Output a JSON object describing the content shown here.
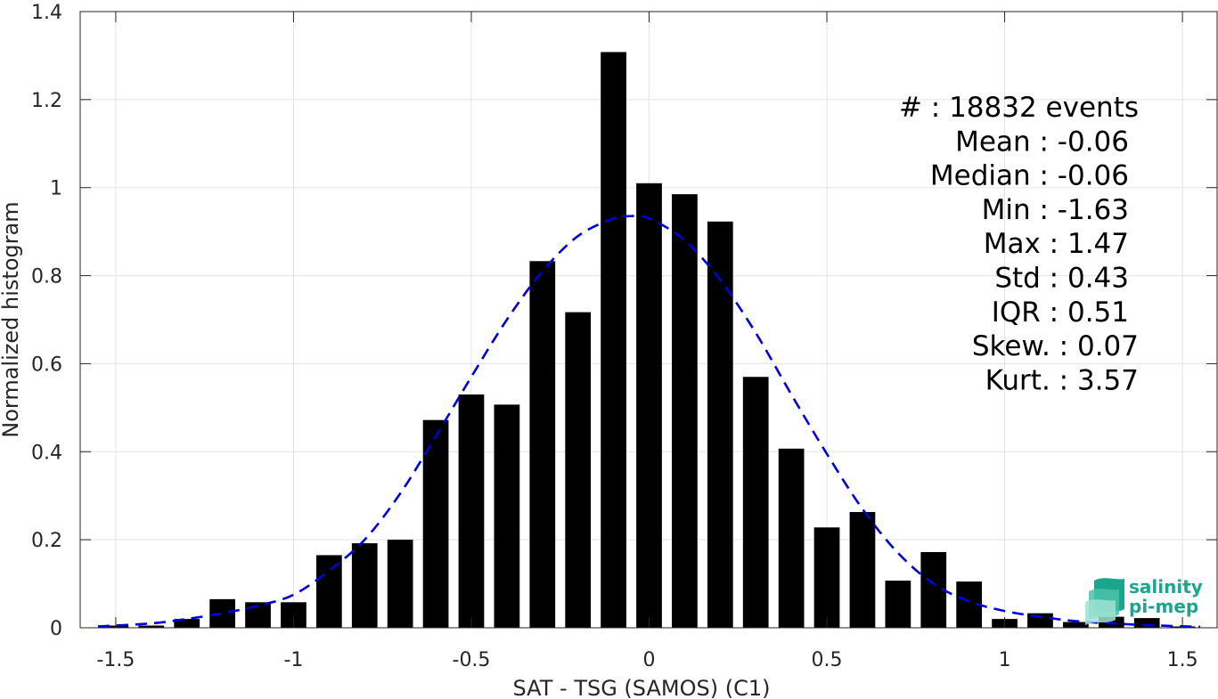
{
  "chart_data": {
    "type": "bar",
    "title": "",
    "xlabel": "SAT - TSG (SAMOS) (C1)",
    "ylabel": "Normalized histogram",
    "xlim": [
      -1.6,
      1.6
    ],
    "ylim": [
      0,
      1.4
    ],
    "xticks": [
      -1.5,
      -1,
      -0.5,
      0,
      0.5,
      1,
      1.5
    ],
    "xtick_labels": [
      "-1.5",
      "-1",
      "-0.5",
      "0",
      "0.5",
      "1",
      "1.5"
    ],
    "yticks": [
      0,
      0.2,
      0.4,
      0.6,
      0.8,
      1,
      1.2,
      1.4
    ],
    "ytick_labels": [
      "0",
      "0.2",
      "0.4",
      "0.6",
      "0.8",
      "1",
      "1.2",
      "1.4"
    ],
    "grid": true,
    "bin_width": 0.1,
    "bars": [
      {
        "x": -1.5,
        "y": 0.005
      },
      {
        "x": -1.4,
        "y": 0.005
      },
      {
        "x": -1.3,
        "y": 0.02
      },
      {
        "x": -1.2,
        "y": 0.065
      },
      {
        "x": -1.1,
        "y": 0.058
      },
      {
        "x": -1.0,
        "y": 0.058
      },
      {
        "x": -0.9,
        "y": 0.165
      },
      {
        "x": -0.8,
        "y": 0.192
      },
      {
        "x": -0.7,
        "y": 0.2
      },
      {
        "x": -0.6,
        "y": 0.472
      },
      {
        "x": -0.5,
        "y": 0.53
      },
      {
        "x": -0.4,
        "y": 0.507
      },
      {
        "x": -0.3,
        "y": 0.833
      },
      {
        "x": -0.2,
        "y": 0.717
      },
      {
        "x": -0.1,
        "y": 1.308
      },
      {
        "x": 0.0,
        "y": 1.01
      },
      {
        "x": 0.1,
        "y": 0.985
      },
      {
        "x": 0.2,
        "y": 0.923
      },
      {
        "x": 0.3,
        "y": 0.57
      },
      {
        "x": 0.4,
        "y": 0.407
      },
      {
        "x": 0.5,
        "y": 0.228
      },
      {
        "x": 0.6,
        "y": 0.263
      },
      {
        "x": 0.7,
        "y": 0.107
      },
      {
        "x": 0.8,
        "y": 0.172
      },
      {
        "x": 0.9,
        "y": 0.105
      },
      {
        "x": 1.0,
        "y": 0.02
      },
      {
        "x": 1.1,
        "y": 0.033
      },
      {
        "x": 1.2,
        "y": 0.013
      },
      {
        "x": 1.3,
        "y": 0.025
      },
      {
        "x": 1.4,
        "y": 0.022
      },
      {
        "x": 1.5,
        "y": 0.003
      }
    ],
    "fit_curve": {
      "style": "dashed",
      "color": "#0000dd",
      "points": [
        [
          -1.55,
          0.003
        ],
        [
          -1.4,
          0.01
        ],
        [
          -1.3,
          0.02
        ],
        [
          -1.2,
          0.033
        ],
        [
          -1.1,
          0.05
        ],
        [
          -1.0,
          0.075
        ],
        [
          -0.9,
          0.13
        ],
        [
          -0.8,
          0.2
        ],
        [
          -0.7,
          0.305
        ],
        [
          -0.6,
          0.435
        ],
        [
          -0.5,
          0.57
        ],
        [
          -0.4,
          0.7
        ],
        [
          -0.3,
          0.81
        ],
        [
          -0.2,
          0.89
        ],
        [
          -0.1,
          0.93
        ],
        [
          -0.06,
          0.935
        ],
        [
          0.0,
          0.93
        ],
        [
          0.1,
          0.88
        ],
        [
          0.2,
          0.79
        ],
        [
          0.3,
          0.67
        ],
        [
          0.4,
          0.53
        ],
        [
          0.5,
          0.395
        ],
        [
          0.6,
          0.27
        ],
        [
          0.7,
          0.17
        ],
        [
          0.8,
          0.1
        ],
        [
          0.9,
          0.06
        ],
        [
          1.0,
          0.038
        ],
        [
          1.1,
          0.025
        ],
        [
          1.2,
          0.015
        ],
        [
          1.3,
          0.01
        ],
        [
          1.4,
          0.006
        ],
        [
          1.55,
          0.002
        ]
      ]
    },
    "annotations": [
      "#  : 18832 events",
      "Mean : -0.06",
      "Median : -0.06",
      "Min : -1.63",
      "Max : 1.47",
      "Std : 0.43",
      "IQR : 0.51",
      "Skew. : 0.07",
      "Kurt. : 3.57"
    ]
  },
  "logo": {
    "line1": "salinity",
    "line2": "pi-mep",
    "colors": [
      "#1aa58c",
      "#7fd6c4"
    ]
  }
}
